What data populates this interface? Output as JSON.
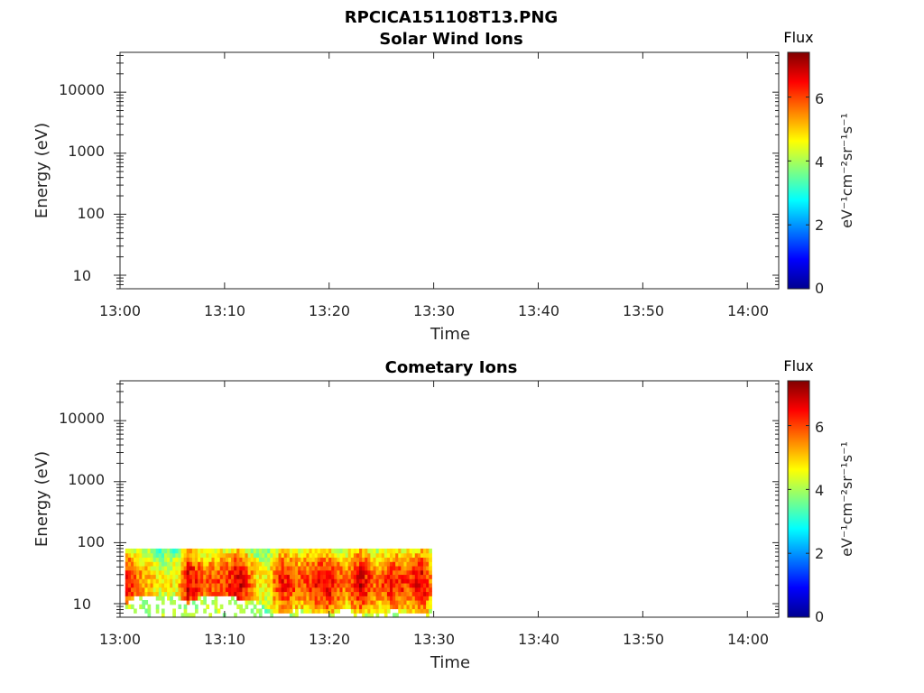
{
  "figure": {
    "title": "RPCICA151108T13.PNG"
  },
  "colors": {
    "colormap": [
      "#00008F",
      "#0000FF",
      "#0080FF",
      "#00FFFF",
      "#80FF80",
      "#FFFF00",
      "#FF8000",
      "#FF0000",
      "#800000"
    ]
  },
  "chart_data": [
    {
      "type": "heatmap",
      "title": "Solar Wind Ions",
      "xlabel": "Time",
      "ylabel": "Energy (eV)",
      "x_tick_labels": [
        "13:00",
        "13:10",
        "13:20",
        "13:30",
        "13:40",
        "13:50",
        "14:00"
      ],
      "x_range_minutes": [
        0,
        63
      ],
      "y_scale": "log",
      "y_tick_labels": [
        "10",
        "100",
        "1000",
        "10000"
      ],
      "y_range": [
        6,
        45000
      ],
      "colorbar": {
        "title": "Flux",
        "unit": "eV⁻¹cm⁻²sr⁻¹s⁻¹",
        "ticks": [
          "0",
          "2",
          "4",
          "6"
        ],
        "range": [
          0,
          7.4
        ]
      },
      "data": []
    },
    {
      "type": "heatmap",
      "title": "Cometary Ions",
      "xlabel": "Time",
      "ylabel": "Energy (eV)",
      "x_tick_labels": [
        "13:00",
        "13:10",
        "13:20",
        "13:30",
        "13:40",
        "13:50",
        "14:00"
      ],
      "x_range_minutes": [
        0,
        63
      ],
      "y_scale": "log",
      "y_tick_labels": [
        "10",
        "100",
        "1000",
        "10000"
      ],
      "y_range": [
        6,
        45000
      ],
      "colorbar": {
        "title": "Flux",
        "unit": "eV⁻¹cm⁻²sr⁻¹s⁻¹",
        "ticks": [
          "0",
          "2",
          "4",
          "6"
        ],
        "range": [
          0,
          7.4
        ]
      },
      "data_extent": {
        "time_minutes": [
          0.5,
          29.8
        ],
        "energy_eV": [
          6,
          80
        ]
      },
      "flux_profile": [
        {
          "t": 0.5,
          "flux": 6.5,
          "emin": 10
        },
        {
          "t": 2,
          "flux": 5.5,
          "emin": 14
        },
        {
          "t": 4,
          "flux": 4.5,
          "emin": 12
        },
        {
          "t": 5.5,
          "flux": 4.8,
          "emin": 14
        },
        {
          "t": 6.5,
          "flux": 6.8,
          "emin": 10
        },
        {
          "t": 8,
          "flux": 5.8,
          "emin": 14
        },
        {
          "t": 10,
          "flux": 6.0,
          "emin": 14
        },
        {
          "t": 11.5,
          "flux": 6.8,
          "emin": 12
        },
        {
          "t": 13,
          "flux": 5.0,
          "emin": 11
        },
        {
          "t": 14,
          "flux": 4.6,
          "emin": 7
        },
        {
          "t": 15.5,
          "flux": 6.5,
          "emin": 7
        },
        {
          "t": 17,
          "flux": 5.8,
          "emin": 8
        },
        {
          "t": 18.5,
          "flux": 6.2,
          "emin": 7
        },
        {
          "t": 20,
          "flux": 6.6,
          "emin": 7
        },
        {
          "t": 21.5,
          "flux": 5.5,
          "emin": 8
        },
        {
          "t": 23,
          "flux": 6.8,
          "emin": 7
        },
        {
          "t": 24.5,
          "flux": 5.6,
          "emin": 7
        },
        {
          "t": 26,
          "flux": 6.4,
          "emin": 8
        },
        {
          "t": 27.5,
          "flux": 6.0,
          "emin": 7
        },
        {
          "t": 29,
          "flux": 6.7,
          "emin": 7
        },
        {
          "t": 29.8,
          "flux": 5.5,
          "emin": 8
        }
      ]
    }
  ]
}
